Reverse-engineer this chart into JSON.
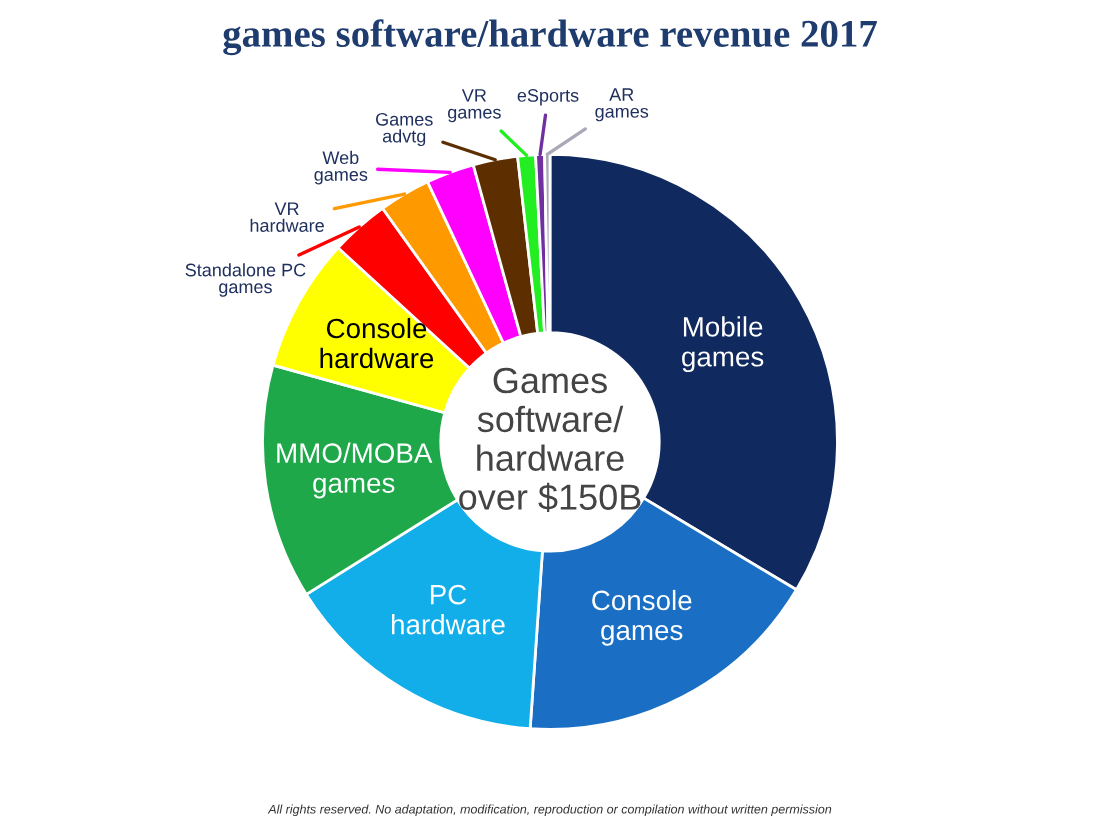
{
  "chart_data": {
    "type": "donut",
    "title": "games software/hardware revenue 2017",
    "categories": [
      "Mobile games",
      "Console games",
      "PC hardware",
      "MMO/MOBA games",
      "Console hardware",
      "Standalone PC games",
      "VR hardware",
      "Web games",
      "Games advtg",
      "VR games",
      "eSports",
      "AR games"
    ],
    "values": [
      33.6,
      17.5,
      15,
      13.2,
      7.5,
      3.3,
      2.9,
      2.7,
      2.5,
      1.0,
      0.5,
      0.3
    ],
    "colors": [
      "#10295e",
      "#1a6fc4",
      "#12aeea",
      "#1ea84a",
      "#ffff00",
      "#ff0000",
      "#ff9900",
      "#ff00ff",
      "#5c2e00",
      "#22ee22",
      "#7030a0",
      "#a9a9b8"
    ],
    "annotations": [
      "Games software/ hardware over $150B",
      "All rights reserved. No adaptation, modification, reproduction or compilation without written permission"
    ]
  }
}
